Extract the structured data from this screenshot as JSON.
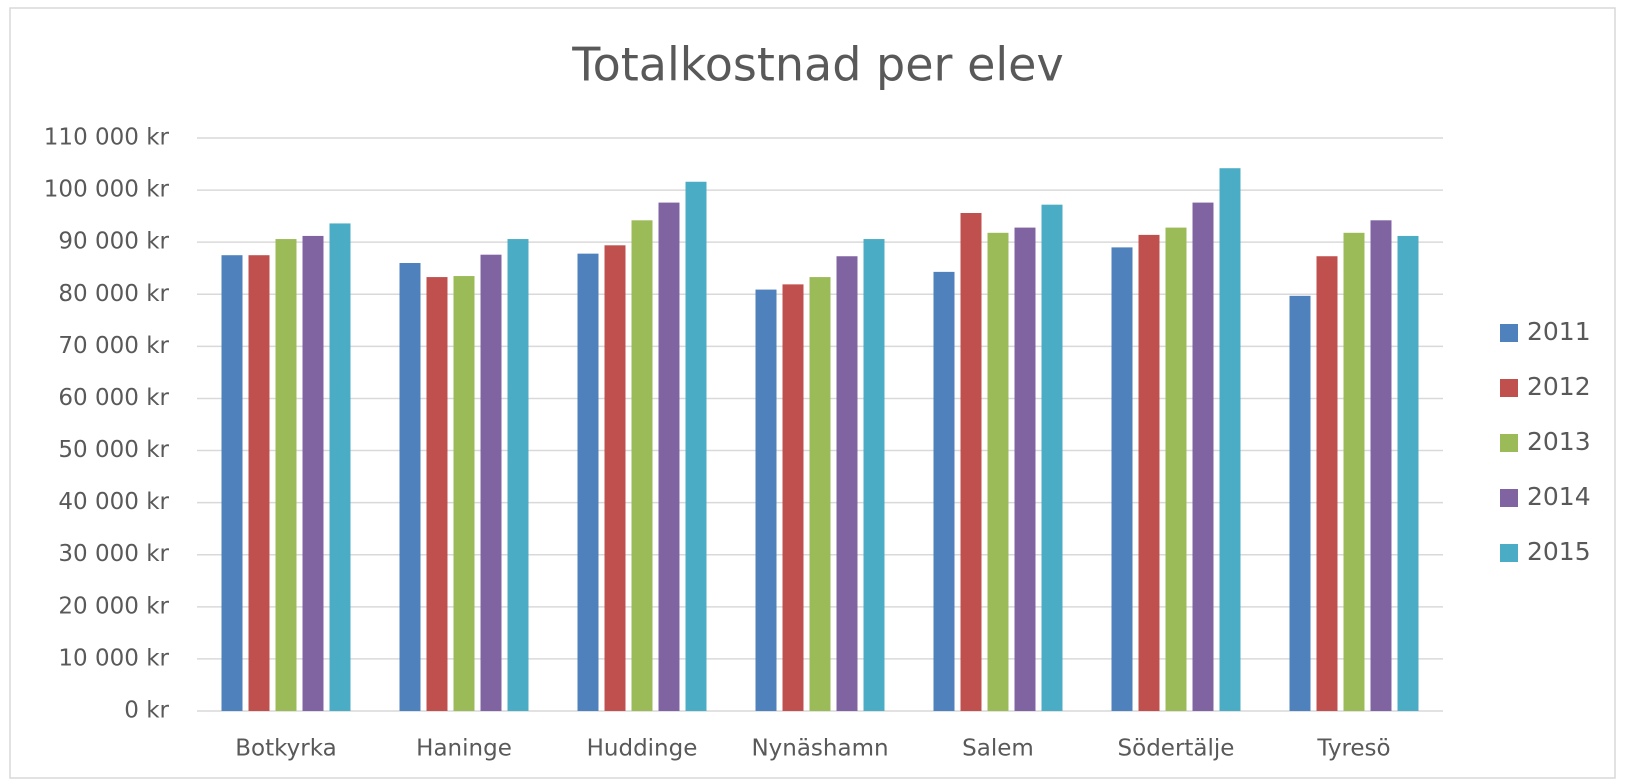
{
  "chart_data": {
    "type": "bar",
    "title": "Totalkostnad per elev",
    "categories": [
      "Botkyrka",
      "Haninge",
      "Huddinge",
      "Nynäshamn",
      "Salem",
      "Södertälje",
      "Tyresö"
    ],
    "series": [
      {
        "name": "2011",
        "color": "#4f81bd",
        "values": [
          87500,
          86000,
          87800,
          80900,
          84300,
          89000,
          79700
        ]
      },
      {
        "name": "2012",
        "color": "#c0504d",
        "values": [
          87500,
          83300,
          89400,
          81900,
          95600,
          91400,
          87300
        ]
      },
      {
        "name": "2013",
        "color": "#9bbb59",
        "values": [
          90600,
          83500,
          94200,
          83300,
          91800,
          92800,
          91800
        ]
      },
      {
        "name": "2014",
        "color": "#8064a2",
        "values": [
          91200,
          87600,
          97600,
          87300,
          92800,
          97600,
          94200
        ]
      },
      {
        "name": "2015",
        "color": "#4bacc6",
        "values": [
          93600,
          90600,
          101600,
          90600,
          97200,
          104200,
          91200
        ]
      }
    ],
    "ylim": [
      0,
      110000
    ],
    "yticks": [
      {
        "value": 0,
        "label": "0 kr"
      },
      {
        "value": 10000,
        "label": "10 000 kr"
      },
      {
        "value": 20000,
        "label": "20 000 kr"
      },
      {
        "value": 30000,
        "label": "30 000 kr"
      },
      {
        "value": 40000,
        "label": "40 000 kr"
      },
      {
        "value": 50000,
        "label": "50 000 kr"
      },
      {
        "value": 60000,
        "label": "60 000 kr"
      },
      {
        "value": 70000,
        "label": "70 000 kr"
      },
      {
        "value": 80000,
        "label": "80 000 kr"
      },
      {
        "value": 90000,
        "label": "90 000 kr"
      },
      {
        "value": 100000,
        "label": "100 000 kr"
      },
      {
        "value": 110000,
        "label": "110 000 kr"
      }
    ],
    "grid": true,
    "legend": "right"
  }
}
